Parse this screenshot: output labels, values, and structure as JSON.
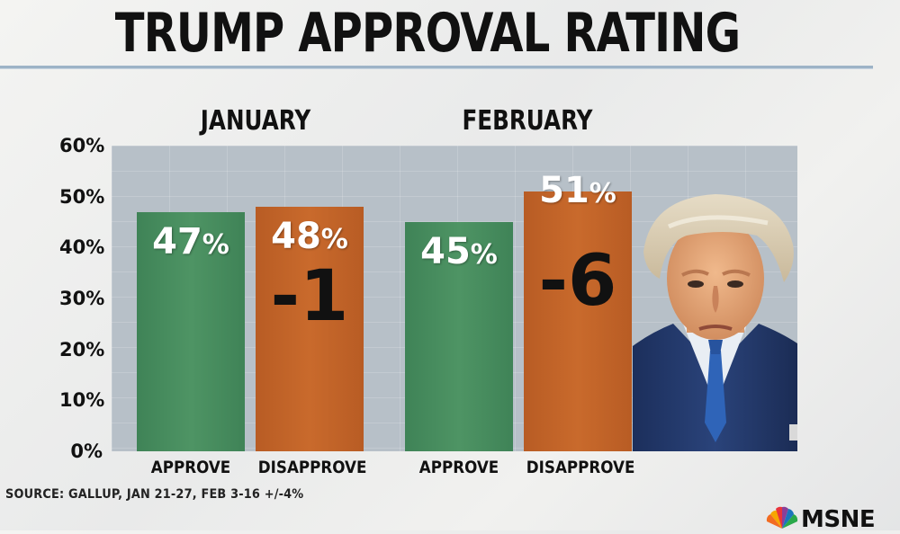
{
  "header": {
    "title": "TRUMP APPROVAL RATING"
  },
  "chart_data": {
    "type": "bar",
    "title": "TRUMP APPROVAL RATING",
    "ylim": [
      0,
      60
    ],
    "yticks": [
      "0%",
      "10%",
      "20%",
      "30%",
      "40%",
      "50%",
      "60%"
    ],
    "groups": [
      {
        "name": "JANUARY",
        "bars": [
          {
            "category": "APPROVE",
            "value": 47,
            "label": "47",
            "pct": "%"
          },
          {
            "category": "DISAPPROVE",
            "value": 48,
            "label": "48",
            "pct": "%"
          }
        ],
        "net": "-1"
      },
      {
        "name": "FEBRUARY",
        "bars": [
          {
            "category": "APPROVE",
            "value": 45,
            "label": "45",
            "pct": "%"
          },
          {
            "category": "DISAPPROVE",
            "value": 51,
            "label": "51",
            "pct": "%"
          }
        ],
        "net": "-6"
      }
    ],
    "colors": {
      "approve": "#4a8f60",
      "disapprove": "#c4652a"
    }
  },
  "footer": {
    "source": "SOURCE: GALLUP, JAN 21-27, FEB 3-16  +/-4%",
    "network": "MSNE"
  },
  "photo": {
    "icon": "trump-portrait"
  }
}
